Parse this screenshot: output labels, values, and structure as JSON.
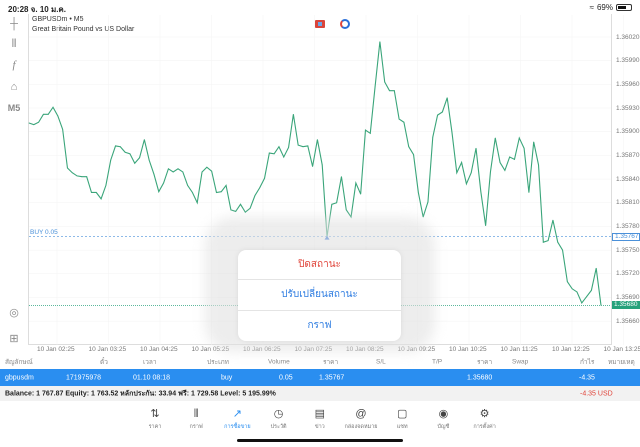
{
  "status_bar": {
    "time": "20:28  จ. 10 ม.ค.",
    "battery": "69%",
    "battery_level": 0.69
  },
  "chart": {
    "symbol_line": "GBPUSDm • M5",
    "description": "Great Britain Pound vs US Dollar",
    "timeframe": "M5",
    "buy_label": "BUY 0.05"
  },
  "chart_data": {
    "type": "line",
    "color": "#3aa57a",
    "ylim": [
      1.3564,
      1.3604
    ],
    "price_ticks": [
      "1.36020",
      "1.35990",
      "1.35960",
      "1.35930",
      "1.35900",
      "1.35870",
      "1.35840",
      "1.35810",
      "1.35780",
      "1.35750",
      "1.35720",
      "1.35690",
      "1.35660"
    ],
    "time_ticks": [
      "10 Jan 02:25",
      "10 Jan 03:25",
      "10 Jan 04:25",
      "10 Jan 05:25",
      "10 Jan 06:25",
      "10 Jan 07:25",
      "10 Jan 08:25",
      "10 Jan 09:25",
      "10 Jan 10:25",
      "10 Jan 11:25",
      "10 Jan 12:25",
      "10 Jan 13:25"
    ],
    "entry_price": "1.35767",
    "current_price": "1.35680",
    "entry_color": "#4a90d9",
    "current_color": "#26a17b",
    "values": [
      1.35911,
      1.35909,
      1.35912,
      1.35922,
      1.35922,
      1.35931,
      1.3592,
      1.35903,
      1.35854,
      1.35848,
      1.35844,
      1.35843,
      1.35843,
      1.35823,
      1.35823,
      1.35815,
      1.35832,
      1.35864,
      1.35882,
      1.35881,
      1.35874,
      1.35872,
      1.3586,
      1.35867,
      1.3589,
      1.35864,
      1.35846,
      1.35824,
      1.35835,
      1.35853,
      1.35849,
      1.35853,
      1.35849,
      1.35832,
      1.35823,
      1.3581,
      1.35849,
      1.35855,
      1.3585,
      1.35823,
      1.35824,
      1.35832,
      1.35801,
      1.35799,
      1.35808,
      1.35798,
      1.35803,
      1.35819,
      1.35829,
      1.35841,
      1.35873,
      1.35872,
      1.35881,
      1.35868,
      1.3588,
      1.35922,
      1.35883,
      1.35881,
      1.35882,
      1.35856,
      1.3589,
      1.35858,
      1.35767,
      1.35808,
      1.3581,
      1.35843,
      1.35801,
      1.35792,
      1.35835,
      1.35821,
      1.35902,
      1.35898,
      1.35957,
      1.36014,
      1.35963,
      1.35952,
      1.35952,
      1.35916,
      1.35912,
      1.35881,
      1.35871,
      1.35823,
      1.35792,
      1.35811,
      1.35893,
      1.35921,
      1.35925,
      1.35943,
      1.35899,
      1.35848,
      1.35861,
      1.35834,
      1.35848,
      1.35879,
      1.35824,
      1.35781,
      1.35849,
      1.35892,
      1.35861,
      1.35851,
      1.35868,
      1.35865,
      1.35892,
      1.35879,
      1.35823,
      1.35887,
      1.35858,
      1.3576,
      1.35762,
      1.35788,
      1.3576,
      1.3575,
      1.3571,
      1.35701,
      1.35697,
      1.35683,
      1.35691,
      1.35699,
      1.35727,
      1.3568
    ]
  },
  "popup": {
    "close_position": "ปิดสถานะ",
    "modify_position": "ปรับเปลี่ยนสถานะ",
    "chart": "กราฟ"
  },
  "table": {
    "headers": [
      "สัญลักษณ์",
      "ตั๋ว",
      "เวลา",
      "ประเภท",
      "Volume",
      "ราคา",
      "S/L",
      "T/P",
      "ราคา",
      "Swap",
      "กำไร",
      "หมายเหตุ"
    ],
    "row": {
      "symbol": "gbpusdm",
      "ticket": "171975978",
      "time": "01.10 08:18",
      "type": "buy",
      "volume": "0.05",
      "open_price": "1.35767",
      "current_price": "1.35680",
      "profit": "-4.35"
    }
  },
  "summary": {
    "text": "Balance: 1 767.87 Equity: 1 763.52 หลักประกัน: 33.94 ฟรี: 1 729.58 Level: 5 195.99%",
    "profit": "-4.35  USD",
    "profit_color": "#e0453b"
  },
  "tabs": [
    {
      "label": "ราคา",
      "icon": "arrows-up-down-icon"
    },
    {
      "label": "กราฟ",
      "icon": "candlestick-icon"
    },
    {
      "label": "การซื้อขาย",
      "icon": "trade-chart-icon",
      "active": true
    },
    {
      "label": "ประวัติ",
      "icon": "history-clock-icon"
    },
    {
      "label": "ข่าว",
      "icon": "news-icon"
    },
    {
      "label": "กล่องจดหมาย",
      "icon": "mail-at-icon"
    },
    {
      "label": "แชท",
      "icon": "chat-icon"
    },
    {
      "label": "บัญชี",
      "icon": "account-icon"
    },
    {
      "label": "การตั้งค่า",
      "icon": "settings-gear-icon"
    }
  ]
}
